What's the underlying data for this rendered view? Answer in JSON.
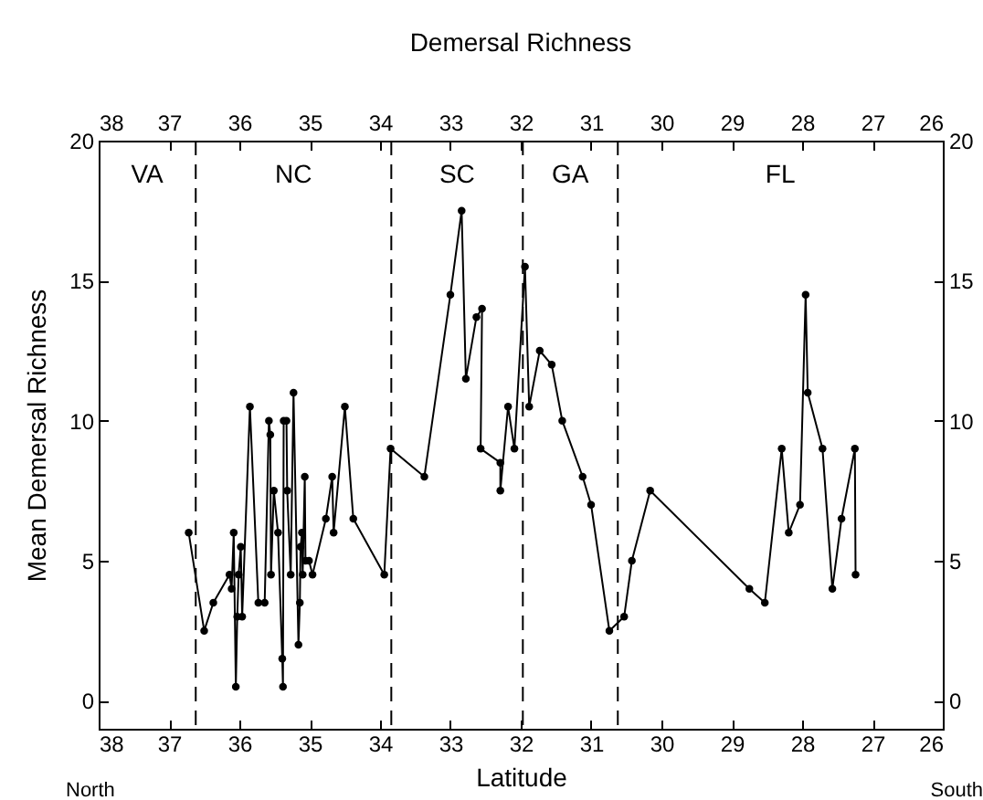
{
  "chart_data": {
    "type": "line",
    "title": "Demersal Richness",
    "xlabel": "Latitude",
    "ylabel": "Mean Demersal Richness",
    "annotations": [
      "North",
      "South",
      "VA",
      "NC",
      "SC",
      "GA",
      "FL"
    ],
    "xlim": [
      38,
      26
    ],
    "xticks": [
      38,
      37,
      36,
      35,
      34,
      33,
      32,
      31,
      30,
      29,
      28,
      27,
      26
    ],
    "x2lim": [
      38,
      26
    ],
    "x2ticks": [
      38,
      37,
      36,
      35,
      34,
      33,
      32,
      31,
      30,
      29,
      28,
      27,
      26
    ],
    "ylim": [
      -1,
      20
    ],
    "yticks": [
      0,
      5,
      10,
      15,
      20
    ],
    "y2lim": [
      -1,
      20
    ],
    "y2ticks": [
      0,
      5,
      10,
      15,
      20
    ],
    "grid": false,
    "marker": "circle",
    "line_style": "solid",
    "ref_lines": [
      {
        "axis": "x",
        "value": 36.62,
        "line_style": "dashed"
      },
      {
        "axis": "x",
        "value": 33.84,
        "line_style": "dashed"
      },
      {
        "axis": "x",
        "value": 31.97,
        "line_style": "dashed"
      },
      {
        "axis": "x",
        "value": 30.62,
        "line_style": "dashed"
      }
    ],
    "series": [
      {
        "color": "#000000",
        "x": [
          36.72,
          36.5,
          36.37,
          36.14,
          36.11,
          36.08,
          36.05,
          36.03,
          36.01,
          35.98,
          35.96,
          35.85,
          35.73,
          35.64,
          35.58,
          35.56,
          35.55,
          35.51,
          35.45,
          35.39,
          35.38,
          35.37,
          35.33,
          35.32,
          35.27,
          35.23,
          35.16,
          35.14,
          35.13,
          35.11,
          35.1,
          35.07,
          35.06,
          35.01,
          34.96,
          34.77,
          34.68,
          34.66,
          34.5,
          34.38,
          33.94,
          33.85,
          33.37,
          33.0,
          32.84,
          32.78,
          32.63,
          32.55,
          32.57,
          32.29,
          32.29,
          32.18,
          32.09,
          31.94,
          31.88,
          31.73,
          31.56,
          31.41,
          31.12,
          31.0,
          30.74,
          30.53,
          30.42,
          30.16,
          28.75,
          28.53,
          28.29,
          28.19,
          28.03,
          27.95,
          27.92,
          27.71,
          27.57,
          27.44,
          27.25,
          27.24
        ],
        "values": [
          6,
          2.5,
          3.5,
          4.5,
          4,
          6,
          0.5,
          3,
          4.5,
          5.5,
          3,
          10.5,
          3.5,
          3.5,
          10,
          9.5,
          4.5,
          7.5,
          6,
          1.5,
          0.5,
          10,
          10,
          7.5,
          4.5,
          11,
          2,
          3.5,
          5.5,
          6,
          4.5,
          8,
          5,
          5,
          4.5,
          6.5,
          8,
          6,
          10.5,
          6.5,
          4.5,
          9,
          8,
          14.5,
          17.5,
          11.5,
          13.7,
          14,
          9,
          8.5,
          7.5,
          10.5,
          9,
          15.5,
          10.5,
          12.5,
          12,
          10,
          8,
          7,
          2.5,
          3,
          5,
          7.5,
          4,
          3.5,
          9,
          6,
          7,
          14.5,
          11,
          9,
          4,
          6.5,
          9,
          4.5
        ]
      }
    ]
  }
}
